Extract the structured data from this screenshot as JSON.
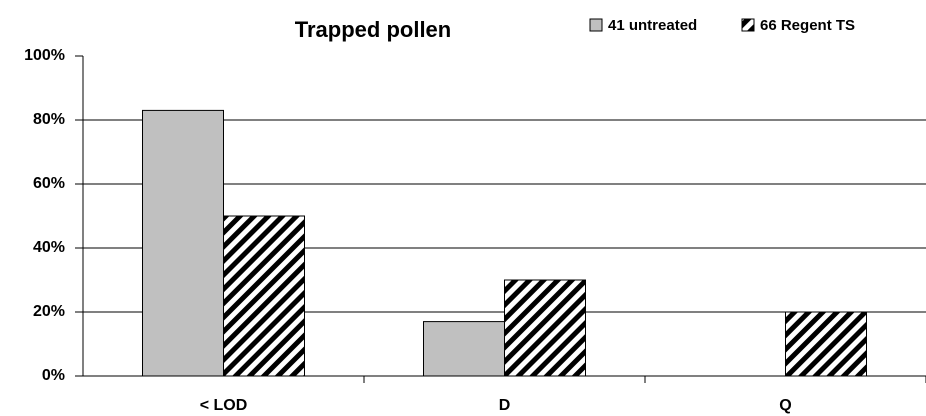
{
  "chart_data": {
    "type": "bar",
    "title": "Trapped pollen",
    "categories": [
      "< LOD",
      "D",
      "Q"
    ],
    "series": [
      {
        "name": "41 untreated",
        "color": "#c0c0c0",
        "values": [
          83,
          17,
          0
        ]
      },
      {
        "name": "66 Regent TS",
        "color": "#000000",
        "hatch": true,
        "values": [
          50,
          30,
          20
        ]
      }
    ],
    "ylim": [
      0,
      100
    ],
    "yticks": [
      {
        "value": 0,
        "label": "0%"
      },
      {
        "value": 20,
        "label": "20%"
      },
      {
        "value": 40,
        "label": "40%"
      },
      {
        "value": 60,
        "label": "60%"
      },
      {
        "value": 80,
        "label": "80%"
      },
      {
        "value": 100,
        "label": "100%"
      }
    ],
    "grid": true
  }
}
